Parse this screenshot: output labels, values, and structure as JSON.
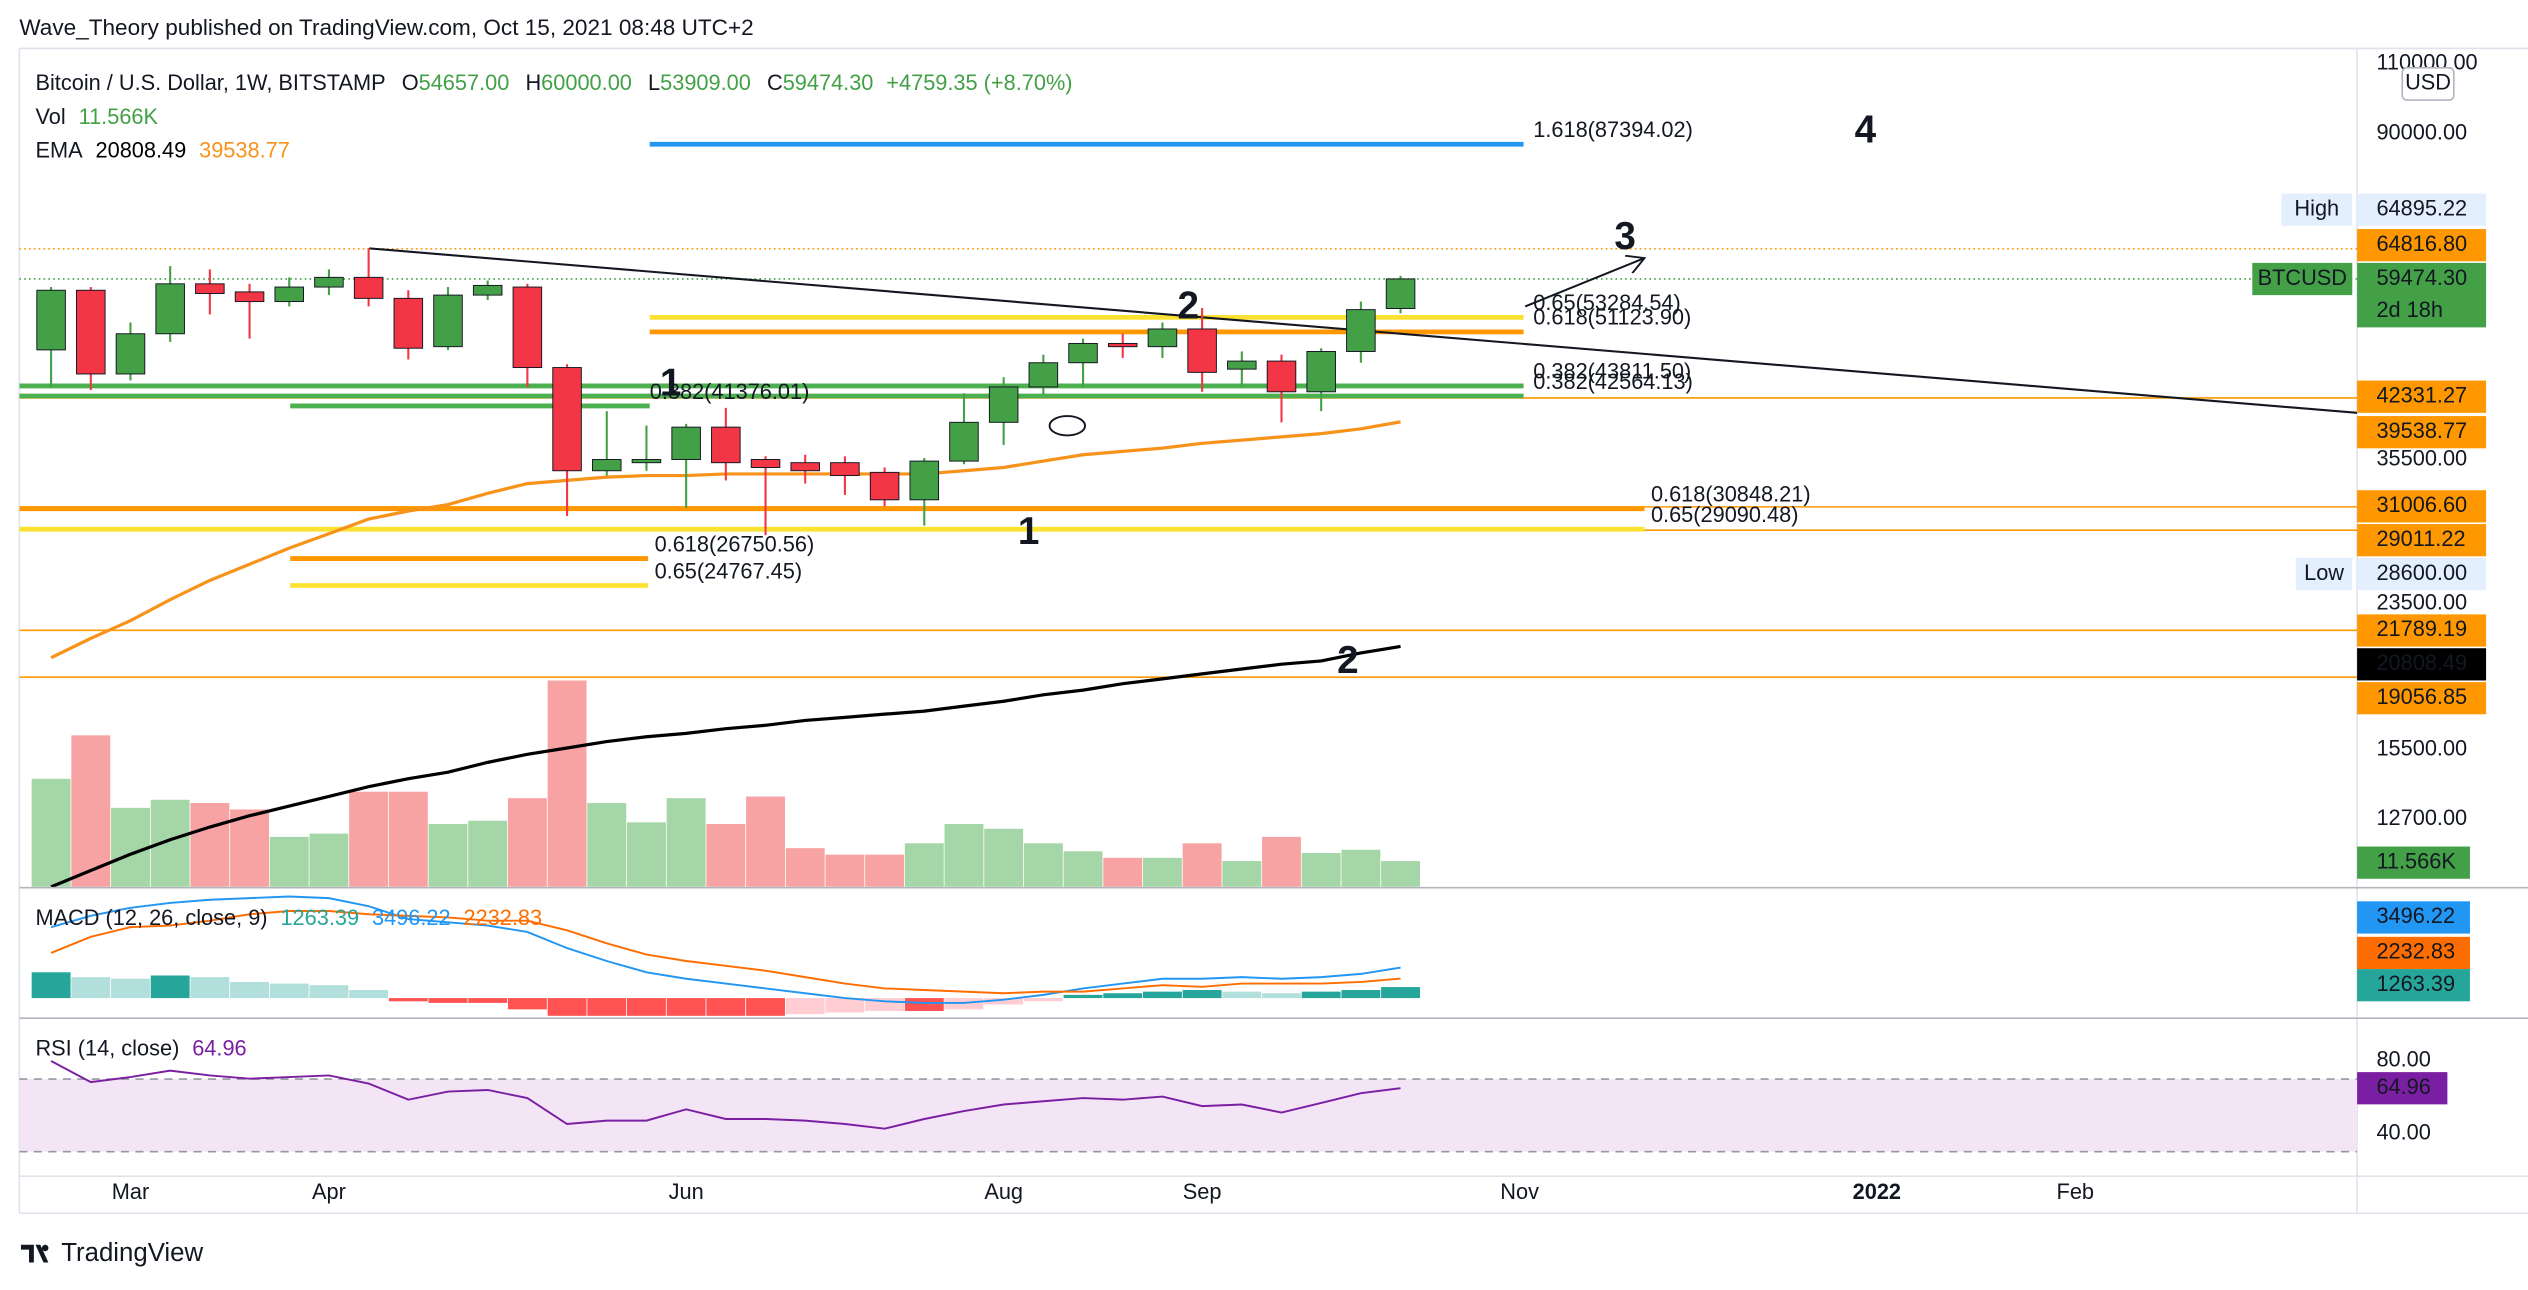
{
  "header": {
    "publisher": "Wave_Theory published on TradingView.com, Oct 15, 2021 08:48 UTC+2",
    "logo": "TradingView"
  },
  "chart_data": {
    "type": "candlestick",
    "title": "Bitcoin / U.S. Dollar, 1W, BITSTAMP",
    "legend": {
      "ohlc": [
        {
          "key": "O",
          "value": "54657.00"
        },
        {
          "key": "H",
          "value": "60000.00"
        },
        {
          "key": "L",
          "value": "53909.00"
        },
        {
          "key": "C",
          "value": "59474.30"
        }
      ],
      "change": "+4759.35 (+8.70%)",
      "vol_name": "Vol",
      "vol_value": "11.566K",
      "ema_name": "EMA",
      "ema_values": [
        "20808.49",
        "39538.77"
      ]
    },
    "currency": "USD",
    "log_scale": true,
    "xlim": [
      -0.8,
      58.1
    ],
    "xticks": [
      {
        "value": 2,
        "label": "Mar"
      },
      {
        "value": 7,
        "label": "Apr"
      },
      {
        "value": 16,
        "label": "Jun"
      },
      {
        "value": 24,
        "label": "Aug"
      },
      {
        "value": 29,
        "label": "Sep"
      },
      {
        "value": 37,
        "label": "Nov"
      },
      {
        "value": 46,
        "label": "2022"
      },
      {
        "value": 51,
        "label": "Feb"
      }
    ],
    "ylim": [
      10470,
      114900
    ],
    "yticks": [
      {
        "value": 110000,
        "label": "110000.00"
      },
      {
        "value": 90000,
        "label": "90000.00"
      },
      {
        "value": 35500,
        "label": "35500.00"
      },
      {
        "value": 23500,
        "label": "23500.00"
      },
      {
        "value": 15500,
        "label": "15500.00"
      },
      {
        "value": 12700,
        "label": "12700.00"
      }
    ],
    "open": [
      48560,
      57580,
      45330,
      50850,
      58650,
      57310,
      55750,
      58110,
      59740,
      56260,
      49010,
      56790,
      58110,
      46170,
      34380,
      35180,
      35500,
      38940,
      35500,
      35180,
      35180,
      34220,
      31640,
      35340,
      39480,
      43680,
      46810,
      49460,
      49010,
      51550,
      45960,
      47030,
      43080,
      48340,
      54657
    ],
    "high": [
      58110,
      58110,
      52510,
      61690,
      61120,
      58650,
      59740,
      61120,
      64895.22,
      57580,
      58110,
      59200,
      58650,
      46600,
      40770,
      39120,
      39300,
      41150,
      35830,
      35990,
      35830,
      34700,
      35660,
      42890,
      44910,
      47900,
      50150,
      50850,
      52510,
      54730,
      48340,
      47900,
      48790,
      55750,
      60000
    ],
    "low": [
      43680,
      43280,
      44500,
      49690,
      53730,
      50150,
      54980,
      56790,
      54980,
      47240,
      48560,
      56000,
      43680,
      30210,
      33910,
      34380,
      30920,
      33440,
      28600,
      33140,
      32080,
      31060,
      29390,
      35020,
      37010,
      42690,
      43680,
      47460,
      47460,
      43080,
      43680,
      39480,
      40770,
      46810,
      53909
    ],
    "close": [
      57580,
      45330,
      50850,
      58650,
      57050,
      55750,
      58110,
      59740,
      56260,
      48790,
      56790,
      58380,
      46170,
      34380,
      35500,
      35500,
      38940,
      35180,
      34700,
      34380,
      33910,
      31640,
      35340,
      39480,
      43680,
      46810,
      49460,
      49010,
      51550,
      45540,
      47030,
      43080,
      48340,
      54480,
      59474.3
    ],
    "up_color": "#43a047",
    "down_color": "#f23645",
    "volume": {
      "values": [
        48440,
        67960,
        35430,
        39040,
        37600,
        34700,
        22410,
        23860,
        42660,
        42660,
        28200,
        29640,
        39770,
        92540,
        37600,
        28920,
        39770,
        28200,
        40490,
        17350,
        14460,
        14460,
        19520,
        28200,
        26030,
        19520,
        15910,
        13010,
        13010,
        19520,
        11570,
        22410,
        15180,
        16630,
        11566
      ],
      "lim": [
        0,
        376000
      ],
      "up_color": "#a5d6a7",
      "down_color": "#f7a3a3"
    },
    "ema": [
      {
        "color": "#000000",
        "values": [
          10470,
          10970,
          11490,
          11980,
          12420,
          12830,
          13190,
          13560,
          13940,
          14260,
          14530,
          14940,
          15290,
          15570,
          15860,
          16080,
          16230,
          16450,
          16610,
          16840,
          16990,
          17150,
          17300,
          17550,
          17790,
          18120,
          18370,
          18710,
          18970,
          19240,
          19510,
          19780,
          19960,
          20430,
          20808.49
        ]
      },
      {
        "color": "#f7931a",
        "values": [
          20150,
          21290,
          22400,
          23780,
          25130,
          26320,
          27560,
          28720,
          29940,
          30640,
          31210,
          32240,
          33140,
          33440,
          33750,
          33910,
          33910,
          34060,
          34060,
          34060,
          34060,
          34060,
          34060,
          34380,
          34700,
          35340,
          35990,
          36330,
          36670,
          37180,
          37520,
          37870,
          38220,
          38750,
          39538.77
        ]
      }
    ],
    "levels": [
      {
        "label": "1.618(87394.02)",
        "value": 87394.02,
        "color": "#2196f3"
      },
      {
        "label": "0.65(53284.54)",
        "value": 53284.54,
        "color": "#fbe232"
      },
      {
        "label": "0.618(51123.90)",
        "value": 51123.9,
        "color": "#ff9800"
      },
      {
        "label": "0.382(43811.50)",
        "value": 43811.5,
        "color": "#4caf50"
      },
      {
        "label": "0.382(42564.13)",
        "value": 42564.13,
        "color": "#4caf50"
      },
      {
        "label": "0.382(41376.01)",
        "value": 41376.01,
        "color": "#4caf50"
      },
      {
        "label": "0.618(30848.21)",
        "value": 30848.21,
        "color": "#ff9800"
      },
      {
        "label": "0.65(29090.48)",
        "value": 29090.48,
        "color": "#fbe232"
      },
      {
        "label": "0.618(26750.56)",
        "value": 26750.56,
        "color": "#ff9800"
      },
      {
        "label": "0.65(24767.45)",
        "value": 24767.45,
        "color": "#fbe232"
      }
    ],
    "price_labels": [
      {
        "value": 64895.22,
        "label": "64895.22",
        "tag": "High",
        "bg": "#e3effd",
        "fg": "#131722"
      },
      {
        "value": 64816.8,
        "label": "64816.80",
        "bg": "#ff9800",
        "fg": "#131722",
        "line": "dotted"
      },
      {
        "value": 59474.3,
        "label": "59474.30",
        "tag": "BTCUSD",
        "sub": "2d 18h",
        "bg": "#43a047",
        "fg": "#ffffff",
        "line": "dotted"
      },
      {
        "value": 42331.27,
        "label": "42331.27",
        "bg": "#ff9800",
        "fg": "#131722",
        "line": "solid"
      },
      {
        "value": 39538.77,
        "label": "39538.77",
        "bg": "#ff9800",
        "fg": "#131722"
      },
      {
        "value": 31006.6,
        "label": "31006.60",
        "bg": "#ff9800",
        "fg": "#131722",
        "line": "solid"
      },
      {
        "value": 29011.22,
        "label": "29011.22",
        "bg": "#ff9800",
        "fg": "#131722",
        "line": "solid"
      },
      {
        "value": 28600,
        "label": "28600.00",
        "tag": "Low",
        "bg": "#e3effd",
        "fg": "#131722"
      },
      {
        "value": 21789.19,
        "label": "21789.19",
        "bg": "#ff9800",
        "fg": "#131722",
        "line": "solid"
      },
      {
        "value": 20808.49,
        "label": "20808.49",
        "bg": "#000000",
        "fg": "#ffffff"
      },
      {
        "value": 19056.85,
        "label": "19056.85",
        "bg": "#ff9800",
        "fg": "#131722",
        "line": "solid"
      }
    ],
    "wave_labels": [
      "4",
      "3",
      "2",
      "1",
      "1",
      "2"
    ],
    "macd": {
      "title": "MACD (12, 26, close, 9)",
      "legend_values": [
        "1263.39",
        "3496.22",
        "2232.83"
      ],
      "lim": [
        -2035,
        12395
      ],
      "macd": {
        "color": "#2196f3",
        "values": [
          8140,
          9435,
          10360,
          10915,
          11285,
          11470,
          11655,
          11470,
          10545,
          9065,
          8695,
          8325,
          7585,
          5735,
          4255,
          2960,
          2220,
          1665,
          1110,
          555,
          0,
          -370,
          -555,
          -555,
          -185,
          370,
          1110,
          1665,
          2220,
          2220,
          2405,
          2220,
          2405,
          2775,
          3496.22
        ]
      },
      "signal": {
        "color": "#ff6d00",
        "values": [
          5180,
          7030,
          8140,
          8325,
          8880,
          9620,
          9990,
          9990,
          9620,
          9435,
          9250,
          8880,
          8880,
          7770,
          6290,
          4995,
          4255,
          3700,
          3145,
          2405,
          1665,
          1110,
          925,
          740,
          555,
          740,
          740,
          1110,
          1480,
          1295,
          1665,
          1665,
          1665,
          1850,
          2232.83
        ]
      },
      "histogram": {
        "colors": [
          "#26a69a",
          "#b2dfdb",
          "#ff5252",
          "#ffcdd2"
        ],
        "values": [
          2960,
          2405,
          2220,
          2590,
          2405,
          1850,
          1665,
          1480,
          925,
          -370,
          -555,
          -555,
          -1295,
          -2035,
          -2035,
          -2035,
          -2035,
          -2035,
          -2035,
          -1850,
          -1665,
          -1480,
          -1480,
          -1295,
          -740,
          -370,
          370,
          555,
          740,
          925,
          740,
          555,
          740,
          925,
          1263.39
        ]
      }
    },
    "rsi": {
      "title": "RSI (14, close)",
      "legend_value": "64.96",
      "color": "#7b1fa2",
      "band_color": "#f3e5f5",
      "lim": [
        17.8,
        103.1
      ],
      "bands": [
        70,
        30
      ],
      "yticks": [
        {
          "value": 80,
          "label": "80.00"
        },
        {
          "value": 40,
          "label": "40.00"
        }
      ],
      "values": [
        80,
        68.4,
        71.1,
        74.7,
        72,
        70.2,
        71.1,
        72,
        67.6,
        58.7,
        63.1,
        64,
        59.6,
        45.3,
        47.1,
        47.1,
        53.3,
        48,
        48,
        47.1,
        45.3,
        42.7,
        48,
        52.4,
        56,
        57.8,
        59.6,
        58.7,
        60.4,
        55.1,
        56,
        51.6,
        56.9,
        62.2,
        64.96
      ]
    }
  }
}
